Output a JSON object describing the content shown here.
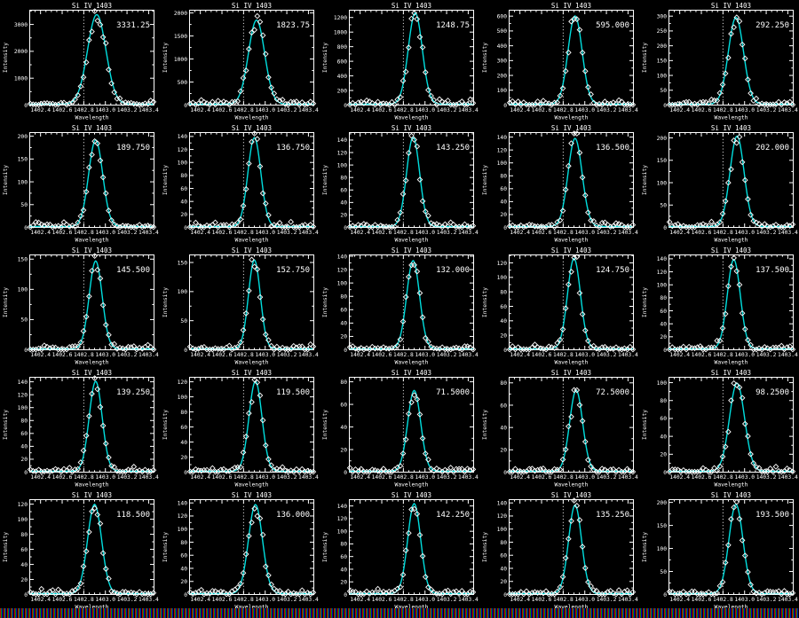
{
  "window": {
    "background": "#000000",
    "axis_color": "#ffffff",
    "text_color": "#ffffff"
  },
  "strip": {
    "name": "color-table-strip",
    "colors": [
      "#c00000",
      "#009000",
      "#0000c0",
      "#000000"
    ]
  },
  "chart_data": {
    "type": "line",
    "description": "5x5 grid of Si IV 1403 spectral line profiles: white open-diamond data points with cyan gaussian fit, dotted reference line, fitted peak amplitude annotated in each panel",
    "defaults": {
      "title": "Si IV 1403",
      "xlabel": "Wavelength",
      "ylabel": "Intensity",
      "x_range": [
        1402.3,
        1403.45
      ],
      "xticks": [
        "1402.4",
        "1402.6",
        "1402.8",
        "1403.0",
        "1403.2",
        "1403.4"
      ],
      "xtick_values": [
        1402.4,
        1402.6,
        1402.8,
        1403.0,
        1403.2,
        1403.4
      ],
      "xtick_minor_step": 0.05,
      "ref_line_wavelength": 1402.8,
      "fit_model": "gaussian",
      "curve_color": "#00dede",
      "marker": "open-diamond",
      "marker_color": "#ffffff",
      "grid": false,
      "legend": "none"
    },
    "panels": [
      {
        "annotation": "3331.25",
        "amplitude": 3331.25,
        "center": 1402.92,
        "sigma": 0.085,
        "ylim": [
          0,
          3530
        ],
        "yticks": [
          0,
          1000,
          2000,
          3000
        ]
      },
      {
        "annotation": "1823.75",
        "amplitude": 1823.75,
        "center": 1402.92,
        "sigma": 0.075,
        "ylim": [
          0,
          2060
        ],
        "yticks": [
          0,
          500,
          1000,
          1500,
          2000
        ]
      },
      {
        "annotation": "1248.75",
        "amplitude": 1248.75,
        "center": 1402.91,
        "sigma": 0.065,
        "ylim": [
          0,
          1300
        ],
        "yticks": [
          0,
          200,
          400,
          600,
          800,
          1000,
          1200
        ]
      },
      {
        "annotation": "595.000",
        "amplitude": 595.0,
        "center": 1402.91,
        "sigma": 0.065,
        "ylim": [
          0,
          640
        ],
        "yticks": [
          0,
          100,
          200,
          300,
          400,
          500,
          600
        ]
      },
      {
        "annotation": "292.250",
        "amplitude": 292.25,
        "center": 1402.92,
        "sigma": 0.07,
        "ylim": [
          0,
          320
        ],
        "yticks": [
          0,
          50,
          100,
          150,
          200,
          250,
          300
        ]
      },
      {
        "annotation": "189.750",
        "amplitude": 189.75,
        "center": 1402.91,
        "sigma": 0.065,
        "ylim": [
          0,
          208
        ],
        "yticks": [
          0,
          50,
          100,
          150,
          200
        ]
      },
      {
        "annotation": "136.750",
        "amplitude": 136.75,
        "center": 1402.9,
        "sigma": 0.06,
        "ylim": [
          0,
          146
        ],
        "yticks": [
          0,
          20,
          40,
          60,
          80,
          100,
          120,
          140
        ]
      },
      {
        "annotation": "143.250",
        "amplitude": 143.25,
        "center": 1402.89,
        "sigma": 0.06,
        "ylim": [
          0,
          152
        ],
        "yticks": [
          0,
          20,
          40,
          60,
          80,
          100,
          120,
          140
        ]
      },
      {
        "annotation": "136.500",
        "amplitude": 136.5,
        "center": 1402.91,
        "sigma": 0.065,
        "ylim": [
          0,
          147
        ],
        "yticks": [
          0,
          20,
          40,
          60,
          80,
          100,
          120,
          140
        ]
      },
      {
        "annotation": "202.000",
        "amplitude": 202.0,
        "center": 1402.93,
        "sigma": 0.065,
        "ylim": [
          0,
          212
        ],
        "yticks": [
          0,
          50,
          100,
          150,
          200
        ]
      },
      {
        "annotation": "145.500",
        "amplitude": 145.5,
        "center": 1402.91,
        "sigma": 0.06,
        "ylim": [
          0,
          157
        ],
        "yticks": [
          0,
          50,
          100,
          150
        ]
      },
      {
        "annotation": "152.750",
        "amplitude": 152.75,
        "center": 1402.9,
        "sigma": 0.055,
        "ylim": [
          0,
          163
        ],
        "yticks": [
          0,
          50,
          100,
          150
        ]
      },
      {
        "annotation": "132.000",
        "amplitude": 132.0,
        "center": 1402.89,
        "sigma": 0.06,
        "ylim": [
          0,
          142
        ],
        "yticks": [
          0,
          20,
          40,
          60,
          80,
          100,
          120,
          140
        ]
      },
      {
        "annotation": "124.750",
        "amplitude": 124.75,
        "center": 1402.9,
        "sigma": 0.06,
        "ylim": [
          0,
          131
        ],
        "yticks": [
          0,
          20,
          40,
          60,
          80,
          100,
          120
        ]
      },
      {
        "annotation": "137.500",
        "amplitude": 137.5,
        "center": 1402.9,
        "sigma": 0.06,
        "ylim": [
          0,
          146
        ],
        "yticks": [
          0,
          20,
          40,
          60,
          80,
          100,
          120,
          140
        ]
      },
      {
        "annotation": "139.250",
        "amplitude": 139.25,
        "center": 1402.91,
        "sigma": 0.06,
        "ylim": [
          0,
          147
        ],
        "yticks": [
          0,
          20,
          40,
          60,
          80,
          100,
          120,
          140
        ]
      },
      {
        "annotation": "119.500",
        "amplitude": 119.5,
        "center": 1402.91,
        "sigma": 0.06,
        "ylim": [
          0,
          126
        ],
        "yticks": [
          0,
          20,
          40,
          60,
          80,
          100,
          120
        ]
      },
      {
        "annotation": "71.5000",
        "amplitude": 71.5,
        "center": 1402.9,
        "sigma": 0.06,
        "ylim": [
          0,
          84
        ],
        "yticks": [
          0,
          20,
          40,
          60,
          80
        ]
      },
      {
        "annotation": "72.5000",
        "amplitude": 72.5,
        "center": 1402.92,
        "sigma": 0.06,
        "ylim": [
          0,
          85
        ],
        "yticks": [
          0,
          20,
          40,
          60,
          80
        ]
      },
      {
        "annotation": "98.2500",
        "amplitude": 98.25,
        "center": 1402.93,
        "sigma": 0.07,
        "ylim": [
          0,
          106
        ],
        "yticks": [
          0,
          20,
          40,
          60,
          80,
          100
        ]
      },
      {
        "annotation": "118.500",
        "amplitude": 118.5,
        "center": 1402.9,
        "sigma": 0.065,
        "ylim": [
          0,
          126
        ],
        "yticks": [
          0,
          20,
          40,
          60,
          80,
          100,
          120
        ]
      },
      {
        "annotation": "136.000",
        "amplitude": 136.0,
        "center": 1402.91,
        "sigma": 0.065,
        "ylim": [
          0,
          145
        ],
        "yticks": [
          0,
          20,
          40,
          60,
          80,
          100,
          120,
          140
        ]
      },
      {
        "annotation": "142.250",
        "amplitude": 142.25,
        "center": 1402.9,
        "sigma": 0.06,
        "ylim": [
          0,
          150
        ],
        "yticks": [
          0,
          20,
          40,
          60,
          80,
          100,
          120,
          140
        ]
      },
      {
        "annotation": "135.250",
        "amplitude": 135.25,
        "center": 1402.91,
        "sigma": 0.06,
        "ylim": [
          0,
          145
        ],
        "yticks": [
          0,
          20,
          40,
          60,
          80,
          100,
          120,
          140
        ]
      },
      {
        "annotation": "193.500",
        "amplitude": 193.5,
        "center": 1402.92,
        "sigma": 0.065,
        "ylim": [
          0,
          206
        ],
        "yticks": [
          0,
          50,
          100,
          150,
          200
        ]
      }
    ]
  }
}
